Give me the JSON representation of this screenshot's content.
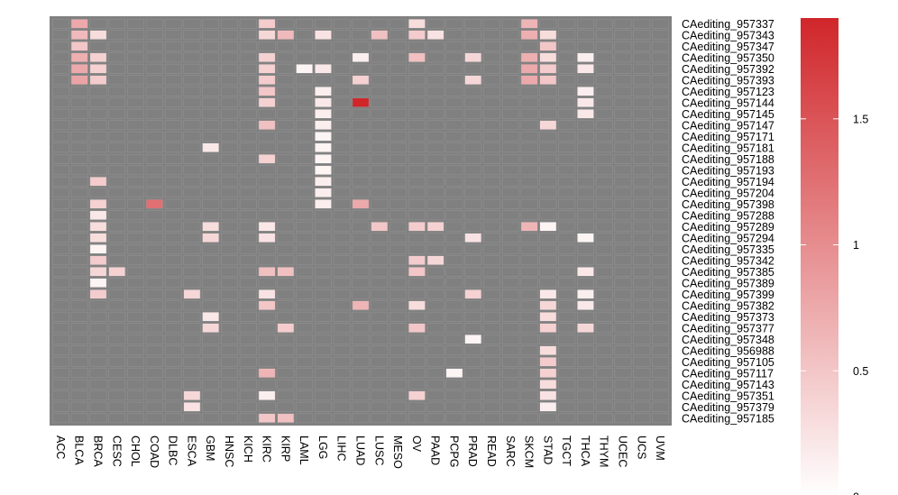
{
  "chart_data": {
    "type": "heatmap",
    "title": "",
    "xlabel": "",
    "ylabel": "",
    "columns": [
      "ACC",
      "BLCA",
      "BRCA",
      "CESC",
      "CHOL",
      "COAD",
      "DLBC",
      "ESCA",
      "GBM",
      "HNSC",
      "KICH",
      "KIRC",
      "KIRP",
      "LAML",
      "LGG",
      "LIHC",
      "LUAD",
      "LUSC",
      "MESO",
      "OV",
      "PAAD",
      "PCPG",
      "PRAD",
      "READ",
      "SARC",
      "SKCM",
      "STAD",
      "TGCT",
      "THCA",
      "THYM",
      "UCEC",
      "UCS",
      "UVM"
    ],
    "rows": [
      "CAediting_957337",
      "CAediting_957343",
      "CAediting_957347",
      "CAediting_957350",
      "CAediting_957392",
      "CAediting_957393",
      "CAediting_957123",
      "CAediting_957144",
      "CAediting_957145",
      "CAediting_957147",
      "CAediting_957171",
      "CAediting_957181",
      "CAediting_957188",
      "CAediting_957193",
      "CAediting_957194",
      "CAediting_957204",
      "CAediting_957398",
      "CAediting_957288",
      "CAediting_957289",
      "CAediting_957294",
      "CAediting_957335",
      "CAediting_957342",
      "CAediting_957385",
      "CAediting_957389",
      "CAediting_957399",
      "CAediting_957382",
      "CAediting_957373",
      "CAediting_957377",
      "CAediting_957348",
      "CAediting_956988",
      "CAediting_957105",
      "CAediting_957117",
      "CAediting_957143",
      "CAediting_957351",
      "CAediting_957379",
      "CAediting_957185"
    ],
    "color_scale": {
      "min": 0,
      "max": 1.9,
      "low_color": "#ffffff",
      "high_color": "#d0262a",
      "na_color": "#808080",
      "ticks": [
        0,
        0.5,
        1,
        1.5
      ],
      "tick_labels": [
        "0",
        "0.5",
        "1",
        "1.5"
      ]
    },
    "values": [
      {
        "row": "CAediting_957337",
        "col": "BLCA",
        "value": 0.75
      },
      {
        "row": "CAediting_957337",
        "col": "KIRC",
        "value": 0.45
      },
      {
        "row": "CAediting_957337",
        "col": "OV",
        "value": 0.3
      },
      {
        "row": "CAediting_957337",
        "col": "SKCM",
        "value": 0.65
      },
      {
        "row": "CAediting_957343",
        "col": "BLCA",
        "value": 0.6
      },
      {
        "row": "CAediting_957343",
        "col": "BRCA",
        "value": 0.3
      },
      {
        "row": "CAediting_957343",
        "col": "KIRC",
        "value": 0.35
      },
      {
        "row": "CAediting_957343",
        "col": "KIRP",
        "value": 0.6
      },
      {
        "row": "CAediting_957343",
        "col": "LGG",
        "value": 0.25
      },
      {
        "row": "CAediting_957343",
        "col": "LUSC",
        "value": 0.55
      },
      {
        "row": "CAediting_957343",
        "col": "OV",
        "value": 0.45
      },
      {
        "row": "CAediting_957343",
        "col": "PAAD",
        "value": 0.25
      },
      {
        "row": "CAediting_957343",
        "col": "SKCM",
        "value": 0.7
      },
      {
        "row": "CAediting_957343",
        "col": "STAD",
        "value": 0.3
      },
      {
        "row": "CAediting_957347",
        "col": "BLCA",
        "value": 0.5
      },
      {
        "row": "CAediting_957347",
        "col": "STAD",
        "value": 0.5
      },
      {
        "row": "CAediting_957350",
        "col": "BLCA",
        "value": 0.7
      },
      {
        "row": "CAediting_957350",
        "col": "BRCA",
        "value": 0.4
      },
      {
        "row": "CAediting_957350",
        "col": "KIRC",
        "value": 0.4
      },
      {
        "row": "CAediting_957350",
        "col": "LUAD",
        "value": 0.15
      },
      {
        "row": "CAediting_957350",
        "col": "OV",
        "value": 0.55
      },
      {
        "row": "CAediting_957350",
        "col": "PRAD",
        "value": 0.35
      },
      {
        "row": "CAediting_957350",
        "col": "SKCM",
        "value": 0.7
      },
      {
        "row": "CAediting_957350",
        "col": "STAD",
        "value": 0.3
      },
      {
        "row": "CAediting_957350",
        "col": "THCA",
        "value": 0.15
      },
      {
        "row": "CAediting_957392",
        "col": "BLCA",
        "value": 0.75
      },
      {
        "row": "CAediting_957392",
        "col": "BRCA",
        "value": 0.4
      },
      {
        "row": "CAediting_957392",
        "col": "KIRC",
        "value": 0.4
      },
      {
        "row": "CAediting_957392",
        "col": "LAML",
        "value": 0.1
      },
      {
        "row": "CAediting_957392",
        "col": "LGG",
        "value": 0.2
      },
      {
        "row": "CAediting_957392",
        "col": "SKCM",
        "value": 0.75
      },
      {
        "row": "CAediting_957392",
        "col": "STAD",
        "value": 0.45
      },
      {
        "row": "CAediting_957392",
        "col": "THCA",
        "value": 0.2
      },
      {
        "row": "CAediting_957393",
        "col": "BLCA",
        "value": 0.8
      },
      {
        "row": "CAediting_957393",
        "col": "BRCA",
        "value": 0.45
      },
      {
        "row": "CAediting_957393",
        "col": "KIRC",
        "value": 0.45
      },
      {
        "row": "CAediting_957393",
        "col": "LUAD",
        "value": 0.4
      },
      {
        "row": "CAediting_957393",
        "col": "PRAD",
        "value": 0.35
      },
      {
        "row": "CAediting_957393",
        "col": "SKCM",
        "value": 0.75
      },
      {
        "row": "CAediting_957393",
        "col": "STAD",
        "value": 0.5
      },
      {
        "row": "CAediting_957123",
        "col": "KIRC",
        "value": 0.5
      },
      {
        "row": "CAediting_957123",
        "col": "LGG",
        "value": 0.15
      },
      {
        "row": "CAediting_957123",
        "col": "THCA",
        "value": 0.15
      },
      {
        "row": "CAediting_957144",
        "col": "KIRC",
        "value": 0.4
      },
      {
        "row": "CAediting_957144",
        "col": "LGG",
        "value": 0.2
      },
      {
        "row": "CAediting_957144",
        "col": "LUAD",
        "value": 1.9
      },
      {
        "row": "CAediting_957144",
        "col": "THCA",
        "value": 0.2
      },
      {
        "row": "CAediting_957145",
        "col": "LGG",
        "value": 0.15
      },
      {
        "row": "CAediting_957145",
        "col": "THCA",
        "value": 0.2
      },
      {
        "row": "CAediting_957147",
        "col": "KIRC",
        "value": 0.55
      },
      {
        "row": "CAediting_957147",
        "col": "LGG",
        "value": 0.15
      },
      {
        "row": "CAediting_957147",
        "col": "STAD",
        "value": 0.35
      },
      {
        "row": "CAediting_957171",
        "col": "LGG",
        "value": 0.1
      },
      {
        "row": "CAediting_957181",
        "col": "GBM",
        "value": 0.2
      },
      {
        "row": "CAediting_957181",
        "col": "LGG",
        "value": 0.1
      },
      {
        "row": "CAediting_957188",
        "col": "KIRC",
        "value": 0.4
      },
      {
        "row": "CAediting_957188",
        "col": "LGG",
        "value": 0.1
      },
      {
        "row": "CAediting_957193",
        "col": "LGG",
        "value": 0.1
      },
      {
        "row": "CAediting_957194",
        "col": "BRCA",
        "value": 0.45
      },
      {
        "row": "CAediting_957194",
        "col": "LGG",
        "value": 0.15
      },
      {
        "row": "CAediting_957204",
        "col": "LGG",
        "value": 0.15
      },
      {
        "row": "CAediting_957398",
        "col": "BRCA",
        "value": 0.4
      },
      {
        "row": "CAediting_957398",
        "col": "COAD",
        "value": 1.25
      },
      {
        "row": "CAediting_957398",
        "col": "LGG",
        "value": 0.15
      },
      {
        "row": "CAediting_957398",
        "col": "LUAD",
        "value": 0.75
      },
      {
        "row": "CAediting_957288",
        "col": "BRCA",
        "value": 0.2
      },
      {
        "row": "CAediting_957289",
        "col": "BRCA",
        "value": 0.3
      },
      {
        "row": "CAediting_957289",
        "col": "GBM",
        "value": 0.3
      },
      {
        "row": "CAediting_957289",
        "col": "KIRC",
        "value": 0.2
      },
      {
        "row": "CAediting_957289",
        "col": "LUSC",
        "value": 0.5
      },
      {
        "row": "CAediting_957289",
        "col": "OV",
        "value": 0.45
      },
      {
        "row": "CAediting_957289",
        "col": "PAAD",
        "value": 0.4
      },
      {
        "row": "CAediting_957289",
        "col": "SKCM",
        "value": 0.65
      },
      {
        "row": "CAediting_957289",
        "col": "STAD",
        "value": 0.1
      },
      {
        "row": "CAediting_957294",
        "col": "BRCA",
        "value": 0.3
      },
      {
        "row": "CAediting_957294",
        "col": "GBM",
        "value": 0.35
      },
      {
        "row": "CAediting_957294",
        "col": "KIRC",
        "value": 0.25
      },
      {
        "row": "CAediting_957294",
        "col": "PRAD",
        "value": 0.25
      },
      {
        "row": "CAediting_957294",
        "col": "THCA",
        "value": 0.1
      },
      {
        "row": "CAediting_957335",
        "col": "BRCA",
        "value": 0.1
      },
      {
        "row": "CAediting_957342",
        "col": "BRCA",
        "value": 0.45
      },
      {
        "row": "CAediting_957342",
        "col": "OV",
        "value": 0.45
      },
      {
        "row": "CAediting_957342",
        "col": "PAAD",
        "value": 0.35
      },
      {
        "row": "CAediting_957385",
        "col": "BRCA",
        "value": 0.35
      },
      {
        "row": "CAediting_957385",
        "col": "CESC",
        "value": 0.4
      },
      {
        "row": "CAediting_957385",
        "col": "KIRC",
        "value": 0.55
      },
      {
        "row": "CAediting_957385",
        "col": "KIRP",
        "value": 0.55
      },
      {
        "row": "CAediting_957385",
        "col": "OV",
        "value": 0.5
      },
      {
        "row": "CAediting_957385",
        "col": "THCA",
        "value": 0.2
      },
      {
        "row": "CAediting_957389",
        "col": "BRCA",
        "value": 0.1
      },
      {
        "row": "CAediting_957399",
        "col": "BRCA",
        "value": 0.45
      },
      {
        "row": "CAediting_957399",
        "col": "ESCA",
        "value": 0.35
      },
      {
        "row": "CAediting_957399",
        "col": "KIRC",
        "value": 0.25
      },
      {
        "row": "CAediting_957399",
        "col": "PRAD",
        "value": 0.4
      },
      {
        "row": "CAediting_957399",
        "col": "STAD",
        "value": 0.2
      },
      {
        "row": "CAediting_957399",
        "col": "THCA",
        "value": 0.15
      },
      {
        "row": "CAediting_957382",
        "col": "KIRC",
        "value": 0.5
      },
      {
        "row": "CAediting_957382",
        "col": "LUAD",
        "value": 0.65
      },
      {
        "row": "CAediting_957382",
        "col": "OV",
        "value": 0.3
      },
      {
        "row": "CAediting_957382",
        "col": "STAD",
        "value": 0.35
      },
      {
        "row": "CAediting_957382",
        "col": "THCA",
        "value": 0.2
      },
      {
        "row": "CAediting_957373",
        "col": "GBM",
        "value": 0.2
      },
      {
        "row": "CAediting_957373",
        "col": "STAD",
        "value": 0.3
      },
      {
        "row": "CAediting_957377",
        "col": "GBM",
        "value": 0.35
      },
      {
        "row": "CAediting_957377",
        "col": "KIRP",
        "value": 0.45
      },
      {
        "row": "CAediting_957377",
        "col": "OV",
        "value": 0.5
      },
      {
        "row": "CAediting_957377",
        "col": "STAD",
        "value": 0.4
      },
      {
        "row": "CAediting_957377",
        "col": "THCA",
        "value": 0.35
      },
      {
        "row": "CAediting_957348",
        "col": "PRAD",
        "value": 0.1
      },
      {
        "row": "CAediting_956988",
        "col": "STAD",
        "value": 0.3
      },
      {
        "row": "CAediting_957105",
        "col": "STAD",
        "value": 0.45
      },
      {
        "row": "CAediting_957117",
        "col": "KIRC",
        "value": 0.65
      },
      {
        "row": "CAediting_957117",
        "col": "PCPG",
        "value": 0.1
      },
      {
        "row": "CAediting_957117",
        "col": "STAD",
        "value": 0.4
      },
      {
        "row": "CAediting_957143",
        "col": "STAD",
        "value": 0.3
      },
      {
        "row": "CAediting_957351",
        "col": "ESCA",
        "value": 0.35
      },
      {
        "row": "CAediting_957351",
        "col": "KIRC",
        "value": 0.15
      },
      {
        "row": "CAediting_957351",
        "col": "OV",
        "value": 0.4
      },
      {
        "row": "CAediting_957351",
        "col": "STAD",
        "value": 0.25
      },
      {
        "row": "CAediting_957379",
        "col": "ESCA",
        "value": 0.25
      },
      {
        "row": "CAediting_957379",
        "col": "STAD",
        "value": 0.15
      },
      {
        "row": "CAediting_957185",
        "col": "KIRC",
        "value": 0.5
      },
      {
        "row": "CAediting_957185",
        "col": "KIRP",
        "value": 0.55
      }
    ]
  }
}
